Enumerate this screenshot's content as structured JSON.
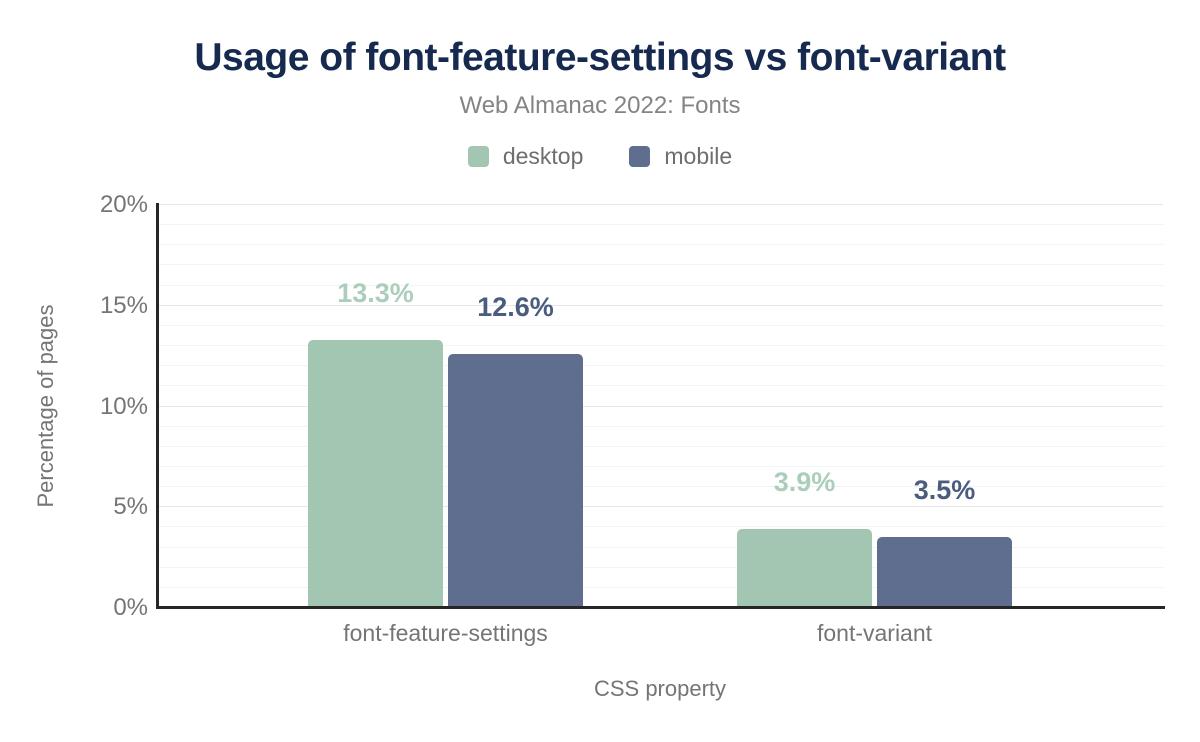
{
  "chart_data": {
    "type": "bar",
    "title": "Usage of font-feature-settings vs font-variant",
    "subtitle": "Web Almanac 2022: Fonts",
    "xlabel": "CSS property",
    "ylabel": "Percentage of pages",
    "categories": [
      "font-feature-settings",
      "font-variant"
    ],
    "series": [
      {
        "name": "desktop",
        "values": [
          13.3,
          3.9
        ],
        "labels": [
          "13.3%",
          "3.9%"
        ],
        "color": "#a3c6b2",
        "label_color": "#abceba"
      },
      {
        "name": "mobile",
        "values": [
          12.6,
          3.5
        ],
        "labels": [
          "12.6%",
          "3.5%"
        ],
        "color": "#5f6e8e",
        "label_color": "#4a5d7e"
      }
    ],
    "ylim": [
      0,
      20
    ],
    "yticks": [
      {
        "value": 0,
        "label": "0%"
      },
      {
        "value": 5,
        "label": "5%"
      },
      {
        "value": 10,
        "label": "10%"
      },
      {
        "value": 15,
        "label": "15%"
      },
      {
        "value": 20,
        "label": "20%"
      }
    ],
    "y_minor_step": 1,
    "y_major_step": 5,
    "grid": true,
    "legend_position": "top"
  },
  "colors": {
    "title": "#16294e",
    "subtitle": "#848484",
    "text": "#757575",
    "axis": "#262626",
    "grid_minor": "#f3f3f3",
    "grid_major": "#e7e7e7",
    "background": "#ffffff"
  }
}
